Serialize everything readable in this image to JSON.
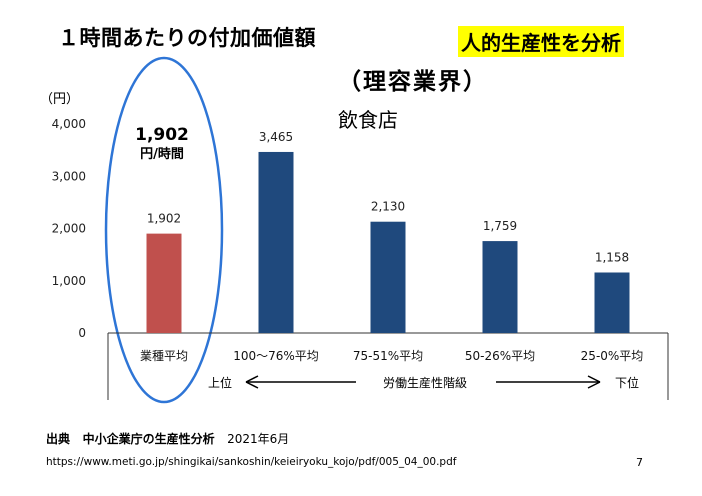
{
  "title": "１時間あたりの付加価値額",
  "badge": "人的生産性を分析",
  "subtitle1": "（理容業界）",
  "subtitle2": "飲食店",
  "unit_label": "（円）",
  "highlight": {
    "value": "1,902",
    "unit": "円/時間"
  },
  "axis_bottom": {
    "left": "上位",
    "middle": "労働生産性階級",
    "right": "下位"
  },
  "source": {
    "label": "出典",
    "text": "中小企業庁の生産性分析",
    "date": "2021年6月"
  },
  "url": "https://www.meti.go.jp/shingikai/sankoshin/keieiryoku_kojo/pdf/005_04_00.pdf",
  "page_number": "7",
  "colors": {
    "average_bar": "#c0504d",
    "tier_bar": "#1f497d",
    "badge_bg": "#ffff00",
    "oval": "#2e75d6"
  },
  "chart_data": {
    "type": "bar",
    "categories": [
      "業種平均",
      "100〜76%平均",
      "75-51%平均",
      "50-26%平均",
      "25-0%平均"
    ],
    "values": [
      1902,
      3465,
      2130,
      1759,
      1158
    ],
    "value_labels": [
      "1,902",
      "3,465",
      "2,130",
      "1,759",
      "1,158"
    ],
    "yticks": [
      "0",
      "1,000",
      "2,000",
      "3,000",
      "4,000"
    ],
    "ylim": [
      0,
      4000
    ],
    "grid": false,
    "highlight_index": 0
  }
}
